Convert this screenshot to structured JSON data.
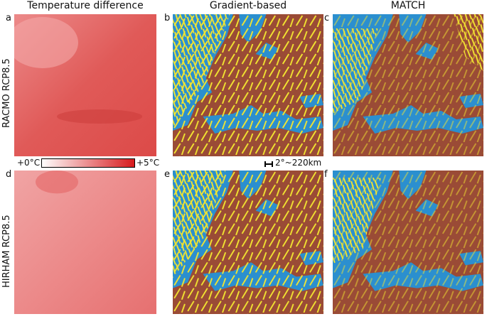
{
  "columns": [
    "Temperature difference",
    "Gradient-based",
    "MATCH"
  ],
  "rows": [
    "RACMO RCP8.5",
    "HIRHAM RCP8.5"
  ],
  "panel_labels": [
    "a",
    "b",
    "c",
    "d",
    "e",
    "f"
  ],
  "colorbar": {
    "min_label": "+0°C",
    "max_label": "+5°C"
  },
  "scale_label": "2°~220km"
}
